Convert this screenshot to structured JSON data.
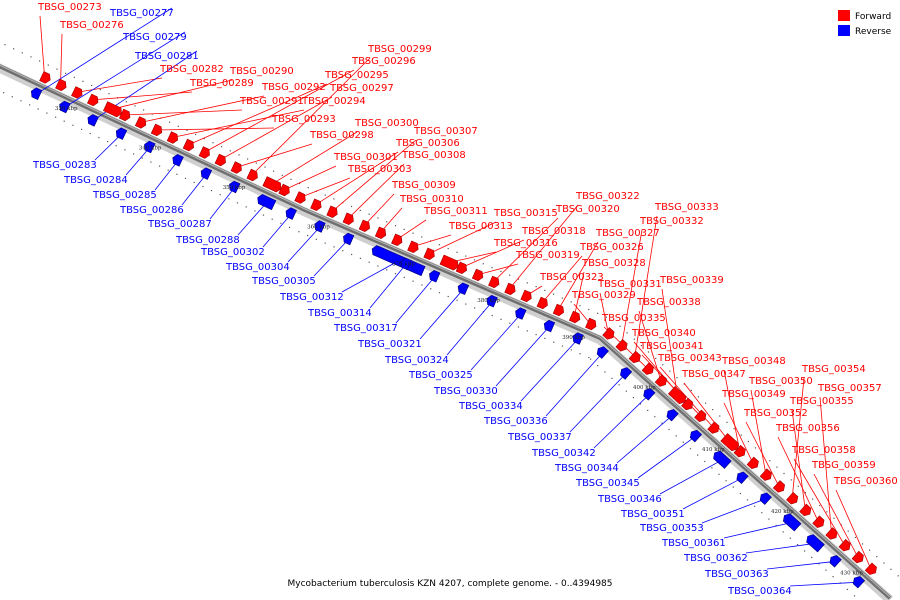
{
  "colors": {
    "forward": "#ff0000",
    "reverse": "#0000ff",
    "backbone": "#808080"
  },
  "legend": [
    {
      "label": "Forward",
      "strand": "forward"
    },
    {
      "label": "Reverse",
      "strand": "reverse"
    }
  ],
  "caption": "Mycobacterium tuberculosis KZN 4207, complete genome. - 0..4394985",
  "ticks": [
    "330 kbp",
    "340 kbp",
    "350 kbp",
    "360 kbp",
    "370 kbp",
    "380 kbp",
    "390 kbp",
    "400 kbp",
    "410 kbp",
    "420 kbp",
    "430 kbp"
  ],
  "forward_genes": [
    "TBSG_00273",
    "TBSG_00276",
    "TBSG_00282",
    "TBSG_00289",
    "TBSG_00290",
    "TBSG_00291",
    "TBSG_00292",
    "TBSG_00293",
    "TBSG_00294",
    "TBSG_00295",
    "TBSG_00296",
    "TBSG_00297",
    "TBSG_00298",
    "TBSG_00299",
    "TBSG_00300",
    "TBSG_00301",
    "TBSG_00303",
    "TBSG_00306",
    "TBSG_00307",
    "TBSG_00308",
    "TBSG_00309",
    "TBSG_00310",
    "TBSG_00311",
    "TBSG_00313",
    "TBSG_00315",
    "TBSG_00316",
    "TBSG_00318",
    "TBSG_00319",
    "TBSG_00320",
    "TBSG_00322",
    "TBSG_00323",
    "TBSG_00326",
    "TBSG_00327",
    "TBSG_00328",
    "TBSG_00329",
    "TBSG_00331",
    "TBSG_00332",
    "TBSG_00333",
    "TBSG_00335",
    "TBSG_00338",
    "TBSG_00339",
    "TBSG_00340",
    "TBSG_00341",
    "TBSG_00343",
    "TBSG_00347",
    "TBSG_00348",
    "TBSG_00349",
    "TBSG_00350",
    "TBSG_00352",
    "TBSG_00354",
    "TBSG_00355",
    "TBSG_00356",
    "TBSG_00357",
    "TBSG_00358",
    "TBSG_00359",
    "TBSG_00360"
  ],
  "reverse_genes": [
    "TBSG_00277",
    "TBSG_00279",
    "TBSG_00281",
    "TBSG_00283",
    "TBSG_00284",
    "TBSG_00285",
    "TBSG_00286",
    "TBSG_00287",
    "TBSG_00288",
    "TBSG_00302",
    "TBSG_00304",
    "TBSG_00305",
    "TBSG_00312",
    "TBSG_00314",
    "TBSG_00317",
    "TBSG_00321",
    "TBSG_00324",
    "TBSG_00325",
    "TBSG_00330",
    "TBSG_00334",
    "TBSG_00336",
    "TBSG_00337",
    "TBSG_00342",
    "TBSG_00344",
    "TBSG_00345",
    "TBSG_00346",
    "TBSG_00351",
    "TBSG_00353",
    "TBSG_00361",
    "TBSG_00362",
    "TBSG_00363",
    "TBSG_00364"
  ]
}
